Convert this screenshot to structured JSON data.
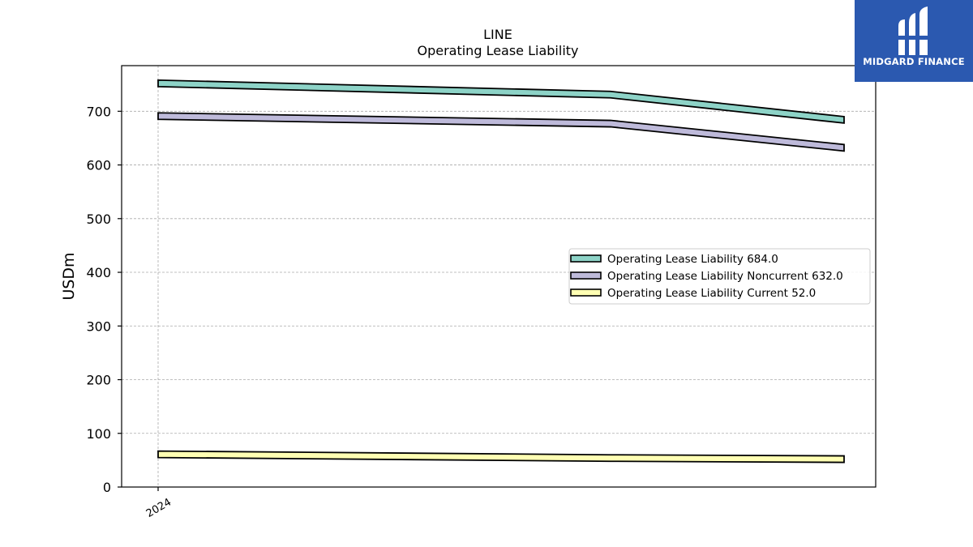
{
  "chart_data": {
    "type": "line",
    "title": "LINE",
    "subtitle": "Operating Lease Liability",
    "ylabel": "USDm",
    "xlabel": "",
    "x_tick_labels": [
      "2024"
    ],
    "ylim": [
      0,
      785
    ],
    "y_ticks": [
      0,
      100,
      200,
      300,
      400,
      500,
      600,
      700
    ],
    "grid": true,
    "legend_position": "center-right",
    "series": [
      {
        "name": "Operating Lease Liability  684.0",
        "color": "#8dd3c7",
        "values": [
          752,
          731,
          684
        ]
      },
      {
        "name": "Operating Lease Liability Noncurrent  632.0",
        "color": "#bebada",
        "values": [
          691,
          677,
          632
        ]
      },
      {
        "name": "Operating Lease Liability Current  52.0",
        "color": "#ffffb3",
        "values": [
          61,
          54,
          52
        ]
      }
    ]
  },
  "logo": {
    "text": "MIDGARD FINANCE",
    "color": "#2b59b0"
  }
}
